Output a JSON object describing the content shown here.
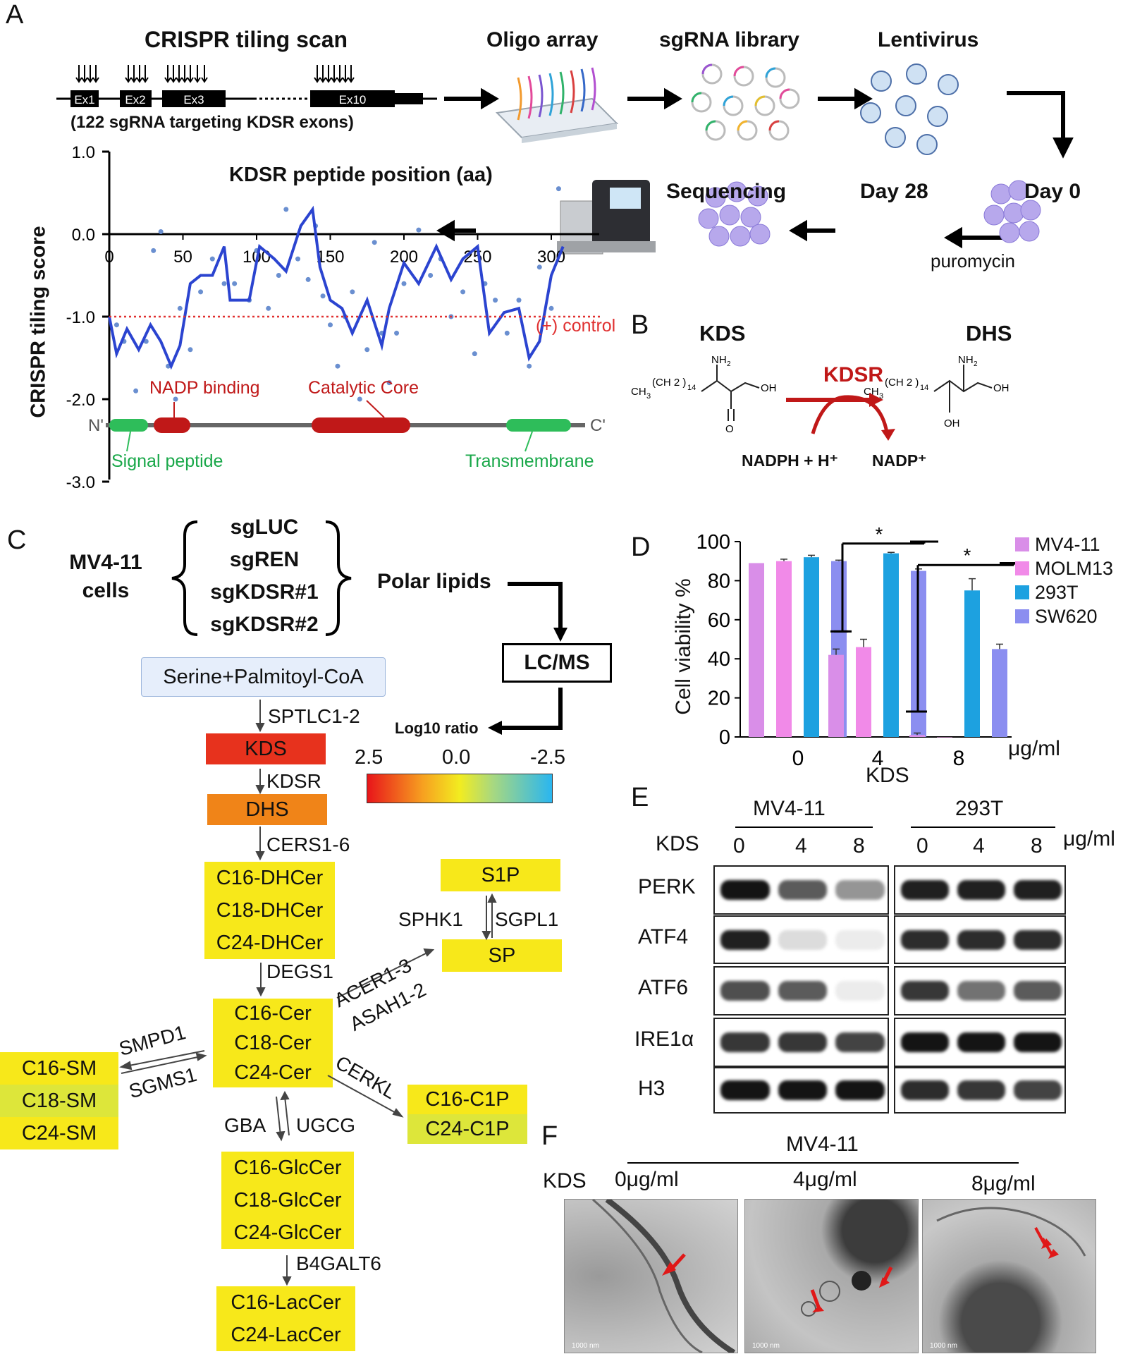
{
  "panels": {
    "A": "A",
    "B": "B",
    "C": "C",
    "D": "D",
    "E": "E",
    "F": "F"
  },
  "panelA": {
    "scan_title": "CRISPR tiling scan",
    "exons": [
      "Ex1",
      "Ex2",
      "Ex3",
      "Ex10"
    ],
    "scan_note": "(122 sgRNA targeting KDSR exons)",
    "workflow": {
      "oligo": "Oligo array",
      "library": "sgRNA library",
      "lentivirus": "Lentivirus",
      "day0": "Day 0",
      "day28": "Day 28",
      "sequencing": "Sequencing",
      "puromycin": "puromycin"
    },
    "plot": {
      "xlabel": "KDSR peptide position (aa)",
      "ylabel": "CRISPR tiling score",
      "xticks": [
        "0",
        "50",
        "100",
        "150",
        "200",
        "250",
        "300"
      ],
      "yticks": [
        "1.0",
        "0.0",
        "-1.0",
        "-2.0",
        "-3.0"
      ],
      "control_label": "(+) control",
      "domains": {
        "nadp": "NADP binding",
        "catalytic": "Catalytic Core",
        "signal": "Signal peptide",
        "tm": "Transmembrane",
        "n": "N'",
        "c": "C'"
      }
    }
  },
  "panelB": {
    "kds": "KDS",
    "dhs": "DHS",
    "enzyme": "KDSR",
    "cofactor_in": "NADPH + H⁺",
    "cofactor_out": "NADP⁺"
  },
  "panelC": {
    "cells": "MV4-11 cells",
    "guides": [
      "sgLUC",
      "sgREN",
      "sgKDSR#1",
      "sgKDSR#2"
    ],
    "polar": "Polar lipids",
    "lcms": "LC/MS",
    "log10": "Log10 ratio",
    "scale": [
      "2.5",
      "0.0",
      "-2.5"
    ],
    "start": "Serine+Palmitoyl-CoA",
    "kds": "KDS",
    "dhs": "DHS",
    "dhcer": [
      "C16-DHCer",
      "C18-DHCer",
      "C24-DHCer"
    ],
    "cer": [
      "C16-Cer",
      "C18-Cer",
      "C24-Cer"
    ],
    "sm": [
      "C16-SM",
      "C18-SM",
      "C24-SM"
    ],
    "c1p": [
      "C16-C1P",
      "C24-C1P"
    ],
    "glccer": [
      "C16-GlcCer",
      "C18-GlcCer",
      "C24-GlcCer"
    ],
    "laccer": [
      "C16-LacCer",
      "C24-LacCer"
    ],
    "s1p": "S1P",
    "sp": "SP",
    "enzymes": {
      "sptlc": "SPTLC1-2",
      "kdsr": "KDSR",
      "cers": "CERS1-6",
      "degs": "DEGS1",
      "sphk": "SPHK1",
      "sgpl": "SGPL1",
      "acer": "ACER1-3",
      "asah": "ASAH1-2",
      "smpd": "SMPD1",
      "sgms": "SGMS1",
      "cerkl": "CERKL",
      "gba": "GBA",
      "ugcg": "UGCG",
      "b4galt": "B4GALT6"
    }
  },
  "chart_data": {
    "type": "bar",
    "categories": [
      "0",
      "4",
      "8"
    ],
    "xlabel": "KDS",
    "unit": "μg/ml",
    "ylabel": "Cell viability %",
    "ylim": [
      0,
      100
    ],
    "yticks": [
      "0",
      "20",
      "40",
      "60",
      "80",
      "100"
    ],
    "legend": "top-right",
    "series": [
      {
        "name": "MV4-11",
        "color": "#d98ee8",
        "values": [
          89,
          42,
          1
        ],
        "err": [
          0,
          3,
          1
        ]
      },
      {
        "name": "MOLM13",
        "color": "#f18ae8",
        "values": [
          90,
          46,
          0
        ],
        "err": [
          1,
          4,
          0
        ]
      },
      {
        "name": "293T",
        "color": "#1da1e0",
        "values": [
          92,
          94,
          75
        ],
        "err": [
          1,
          0.5,
          6
        ]
      },
      {
        "name": "SW620",
        "color": "#8b8ef0",
        "values": [
          90,
          85,
          45
        ],
        "err": [
          0.5,
          1,
          2.5
        ]
      }
    ],
    "significance": "*"
  },
  "panelE": {
    "groups": [
      "MV4-11",
      "293T"
    ],
    "kds_label": "KDS",
    "doses": [
      "0",
      "4",
      "8"
    ],
    "unit": "μg/ml",
    "proteins": [
      "PERK",
      "ATF4",
      "ATF6",
      "IRE1α",
      "H3"
    ]
  },
  "panelF": {
    "cell": "MV4-11",
    "kds": "KDS",
    "doses": [
      "0μg/ml",
      "4μg/ml",
      "8μg/ml"
    ],
    "scale": "1000 nm"
  }
}
